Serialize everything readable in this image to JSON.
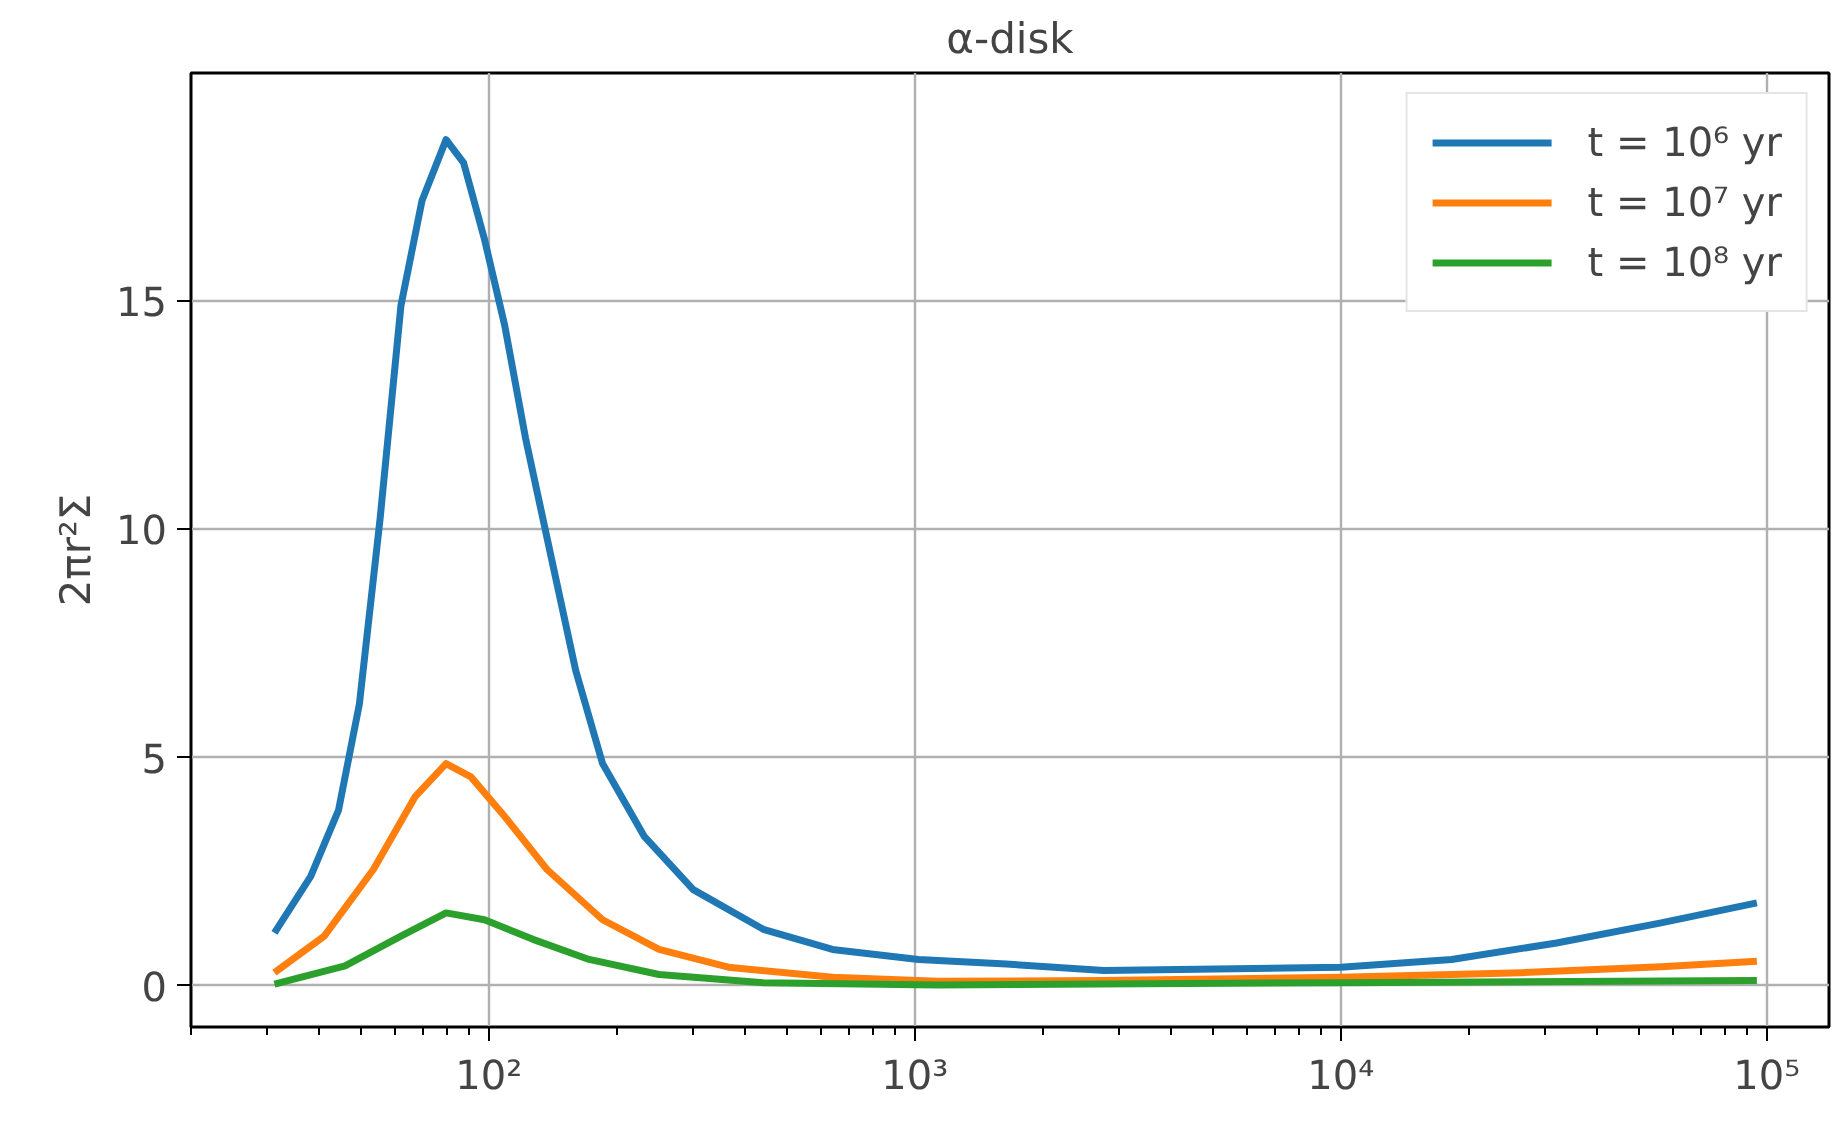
{
  "chart_data": {
    "type": "line",
    "title": "α-disk",
    "ylabel": "2πr²Σ",
    "log": "x",
    "grid": true,
    "legend": "top right",
    "line_style": "solid",
    "marker": "none",
    "xlim": [
      20,
      140000
    ],
    "ylim": [
      -0.9,
      20
    ],
    "xticks": [
      {
        "value": 100,
        "label": "10²"
      },
      {
        "value": 1000,
        "label": "10³"
      },
      {
        "value": 10000,
        "label": "10⁴"
      },
      {
        "value": 100000,
        "label": "10⁵"
      }
    ],
    "yticks": [
      0,
      5,
      10,
      15
    ],
    "series": [
      {
        "name": "t = 10⁶ yr",
        "color": "#1f77b4",
        "x": [
          31.4,
          38.2,
          44.4,
          49.7,
          55.6,
          62.2,
          69.7,
          79.4,
          87.3,
          97.7,
          109,
          122,
          137,
          160,
          185,
          232,
          302,
          441,
          641,
          1020,
          1640,
          2780,
          10000,
          18200,
          32100,
          56500,
          94800
        ],
        "values": [
          1.16,
          2.4,
          3.85,
          6.18,
          10.25,
          14.9,
          17.2,
          18.54,
          18.03,
          16.36,
          14.47,
          12.0,
          9.82,
          6.91,
          4.87,
          3.27,
          2.11,
          1.24,
          0.8,
          0.58,
          0.48,
          0.34,
          0.41,
          0.58,
          0.94,
          1.38,
          1.82
        ]
      },
      {
        "name": "t = 10⁷ yr",
        "color": "#ff7f0e",
        "x": [
          31.4,
          41.1,
          53.6,
          67.1,
          79.4,
          90.8,
          109,
          137,
          185,
          251,
          365,
          641,
          1130,
          2780,
          10000,
          26600,
          56500,
          94800
        ],
        "values": [
          0.29,
          1.09,
          2.55,
          4.14,
          4.87,
          4.58,
          3.71,
          2.55,
          1.45,
          0.8,
          0.41,
          0.19,
          0.1,
          0.12,
          0.19,
          0.29,
          0.42,
          0.54
        ]
      },
      {
        "name": "t = 10⁸ yr",
        "color": "#2ca02c",
        "x": [
          31.4,
          46.0,
          62.2,
          79.4,
          97.7,
          127,
          172,
          251,
          441,
          1130,
          10000,
          94800
        ],
        "values": [
          0.04,
          0.44,
          1.09,
          1.6,
          1.45,
          1.02,
          0.58,
          0.25,
          0.07,
          0.02,
          0.07,
          0.12
        ]
      }
    ]
  }
}
